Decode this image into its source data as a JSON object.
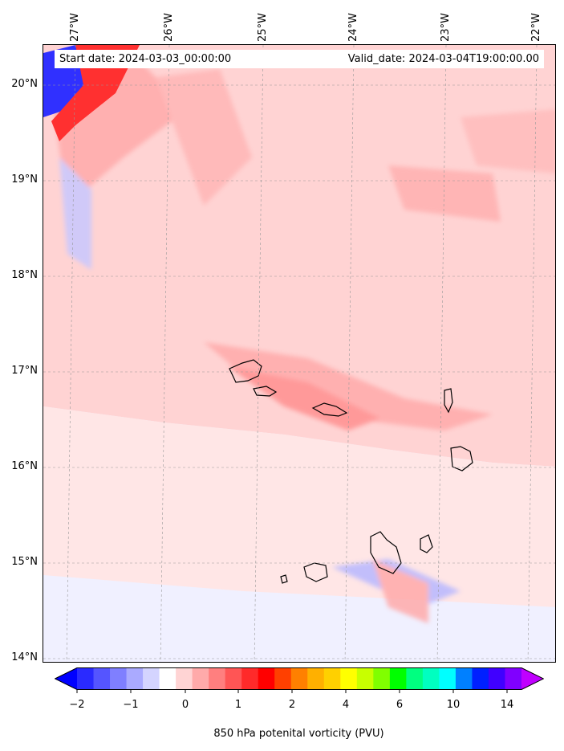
{
  "header": {
    "start_date": "Start date: 2024-03-03_00:00:00",
    "valid_date": "Valid_date: 2024-03-04T19:00:00.00"
  },
  "map": {
    "lat_labels": [
      "20°N",
      "19°N",
      "18°N",
      "17°N",
      "16°N",
      "15°N",
      "14°N"
    ],
    "lon_labels": [
      "27°W",
      "26°W",
      "25°W",
      "24°W",
      "23°W",
      "22°W"
    ],
    "lat_range": [
      13.95,
      20.45
    ],
    "lon_range": [
      -27.32,
      -21.78
    ],
    "gridlines": true,
    "field_colors": {
      "background": "#f0f0ff",
      "light_pink": "#ffd6d6",
      "pink": "#ffb3b3",
      "red": "#ff7070",
      "blue": "#b0b0ff"
    }
  },
  "colorbar": {
    "title": "850 hPa potenital vorticity (PVU)",
    "tick_labels": [
      "−2",
      "−1",
      "0",
      "1",
      "2",
      "4",
      "6",
      "10",
      "14"
    ],
    "colors": [
      "#0000ff",
      "#2a2aff",
      "#5555ff",
      "#7f7fff",
      "#aaaaff",
      "#d4d4ff",
      "#ffffff",
      "#ffd4d4",
      "#ffaaaa",
      "#ff7f7f",
      "#ff5555",
      "#ff2a2a",
      "#ff0000",
      "#ff4000",
      "#ff8000",
      "#ffb000",
      "#ffd000",
      "#ffff00",
      "#c8ff00",
      "#80ff00",
      "#00ff00",
      "#00ff80",
      "#00ffc0",
      "#00ffff",
      "#0080ff",
      "#0020ff",
      "#4000ff",
      "#8000ff",
      "#c000ff"
    ]
  }
}
